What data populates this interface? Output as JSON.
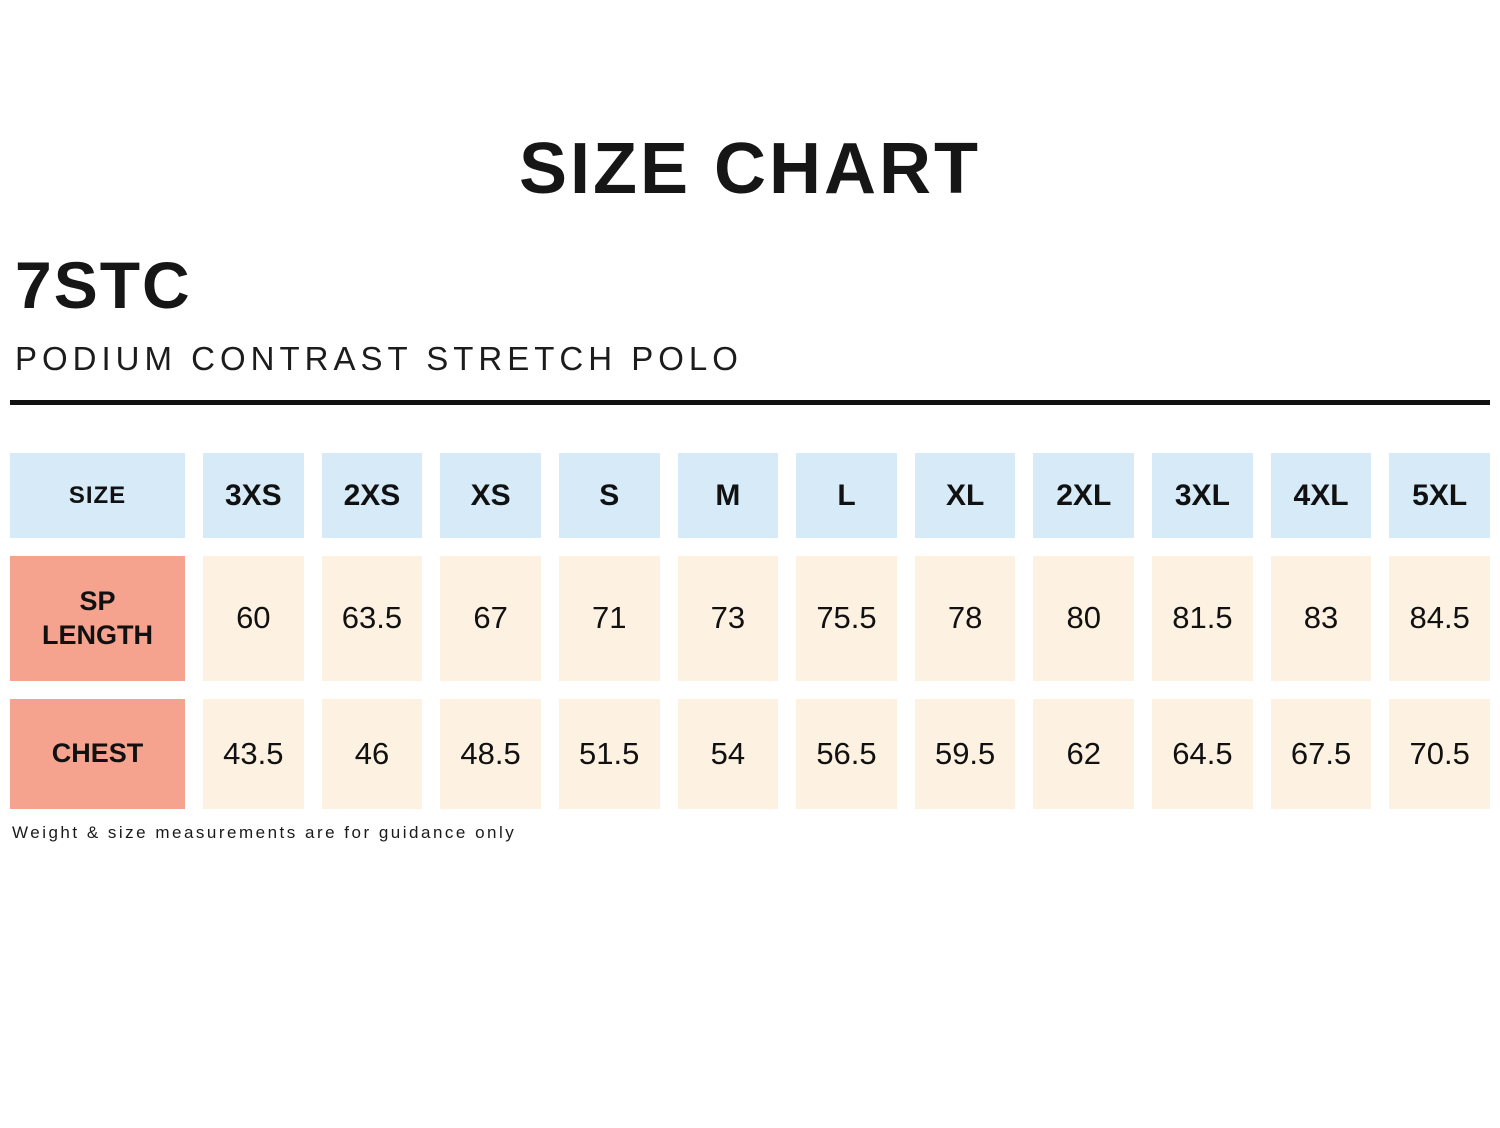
{
  "page": {
    "title": "SIZE CHART",
    "product_code": "7STC",
    "product_name": "PODIUM CONTRAST STRETCH POLO",
    "footnote": "Weight & size measurements are for guidance only"
  },
  "colors": {
    "header_cell_bg": "#d6eaf8",
    "row_label_bg": "#f5a28e",
    "data_cell_bg": "#fdf1e1",
    "text": "#111111",
    "rule": "#111111"
  },
  "chart_data": {
    "type": "table",
    "title": "SIZE CHART",
    "columns": [
      "SIZE",
      "3XS",
      "2XS",
      "XS",
      "S",
      "M",
      "L",
      "XL",
      "2XL",
      "3XL",
      "4XL",
      "5XL"
    ],
    "rows": [
      {
        "label": "SP LENGTH",
        "values": [
          60,
          63.5,
          67,
          71,
          73,
          75.5,
          78,
          80,
          81.5,
          83,
          84.5
        ]
      },
      {
        "label": "CHEST",
        "values": [
          43.5,
          46,
          48.5,
          51.5,
          54,
          56.5,
          59.5,
          62,
          64.5,
          67.5,
          70.5
        ]
      }
    ]
  }
}
